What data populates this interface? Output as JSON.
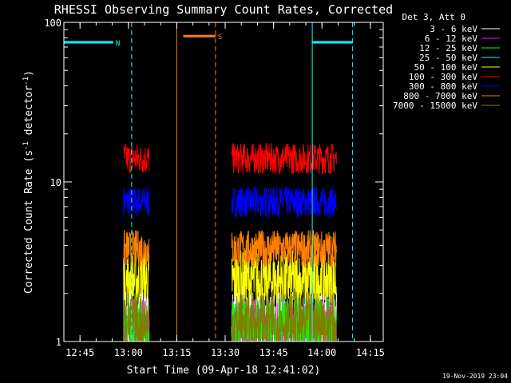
{
  "chart_data": {
    "type": "line",
    "title": "RHESSI Observing Summary Count Rates, Corrected",
    "xlabel": "Start Time (09-Apr-18 12:41:02)",
    "ylabel": "Corrected Count Rate (s",
    "ylabel_sup": "-1",
    "ylabel_rest": " detector",
    "ylabel_close": ")",
    "yscale": "log",
    "ylim": [
      1,
      100
    ],
    "xlim_minutes": [
      -5.0,
      94.0
    ],
    "x_ticks": [
      {
        "label": "12:45",
        "min": 0
      },
      {
        "label": "13:00",
        "min": 15
      },
      {
        "label": "13:15",
        "min": 30
      },
      {
        "label": "13:30",
        "min": 45
      },
      {
        "label": "13:45",
        "min": 60
      },
      {
        "label": "14:00",
        "min": 75
      },
      {
        "label": "14:15",
        "min": 90
      }
    ],
    "y_ticks": [
      {
        "label": "1",
        "value": 1
      },
      {
        "label": "10",
        "value": 10
      },
      {
        "label": "100",
        "value": 100
      }
    ],
    "legend_title": "Det 3, Att 0",
    "legend_position": "top-right, outside plot",
    "series": [
      {
        "name": "3 - 6 keV",
        "color": "#ffffff",
        "level": 1.3
      },
      {
        "name": "6 - 12 keV",
        "color": "#ff00ff",
        "level": 1.2
      },
      {
        "name": "12 - 25 keV",
        "color": "#00ff00",
        "level": 1.2
      },
      {
        "name": "25 - 50 keV",
        "color": "#00ffff",
        "level": 1.2
      },
      {
        "name": "50 - 100 keV",
        "color": "#ffff00",
        "level": 2.4
      },
      {
        "name": "100 - 300 keV",
        "color": "#ff0000",
        "level": 14
      },
      {
        "name": "300 - 800 keV",
        "color": "#0000ff",
        "level": 7.5
      },
      {
        "name": "800 - 7000 keV",
        "color": "#ff8000",
        "level": 3.8
      },
      {
        "name": "7000 - 15000 keV",
        "color": "#808000",
        "level": 1.3
      }
    ],
    "data_segments": [
      {
        "start": 13.5,
        "end": 21.5
      },
      {
        "start": 47.0,
        "end": 79.5
      }
    ],
    "markers": [
      {
        "label": "N",
        "color": "#00ffff",
        "bar_start": -5.0,
        "bar_end": 10.3,
        "bar_y": 75,
        "solid_at": -5.0,
        "dashed_at": 16.0
      },
      {
        "label": "S",
        "color": "#ff8000",
        "bar_start": 32.0,
        "bar_end": 42.0,
        "bar_y": 82,
        "solid_at": 30.0,
        "dashed_at": 42.0
      },
      {
        "label": "",
        "color": "#00ffff",
        "bar_start": 72.0,
        "bar_end": 84.5,
        "bar_y": 75,
        "solid_at": 72.0,
        "dashed_at": 84.5
      }
    ],
    "grid": false
  },
  "timestamp": "19-Nov-2019 23:04"
}
